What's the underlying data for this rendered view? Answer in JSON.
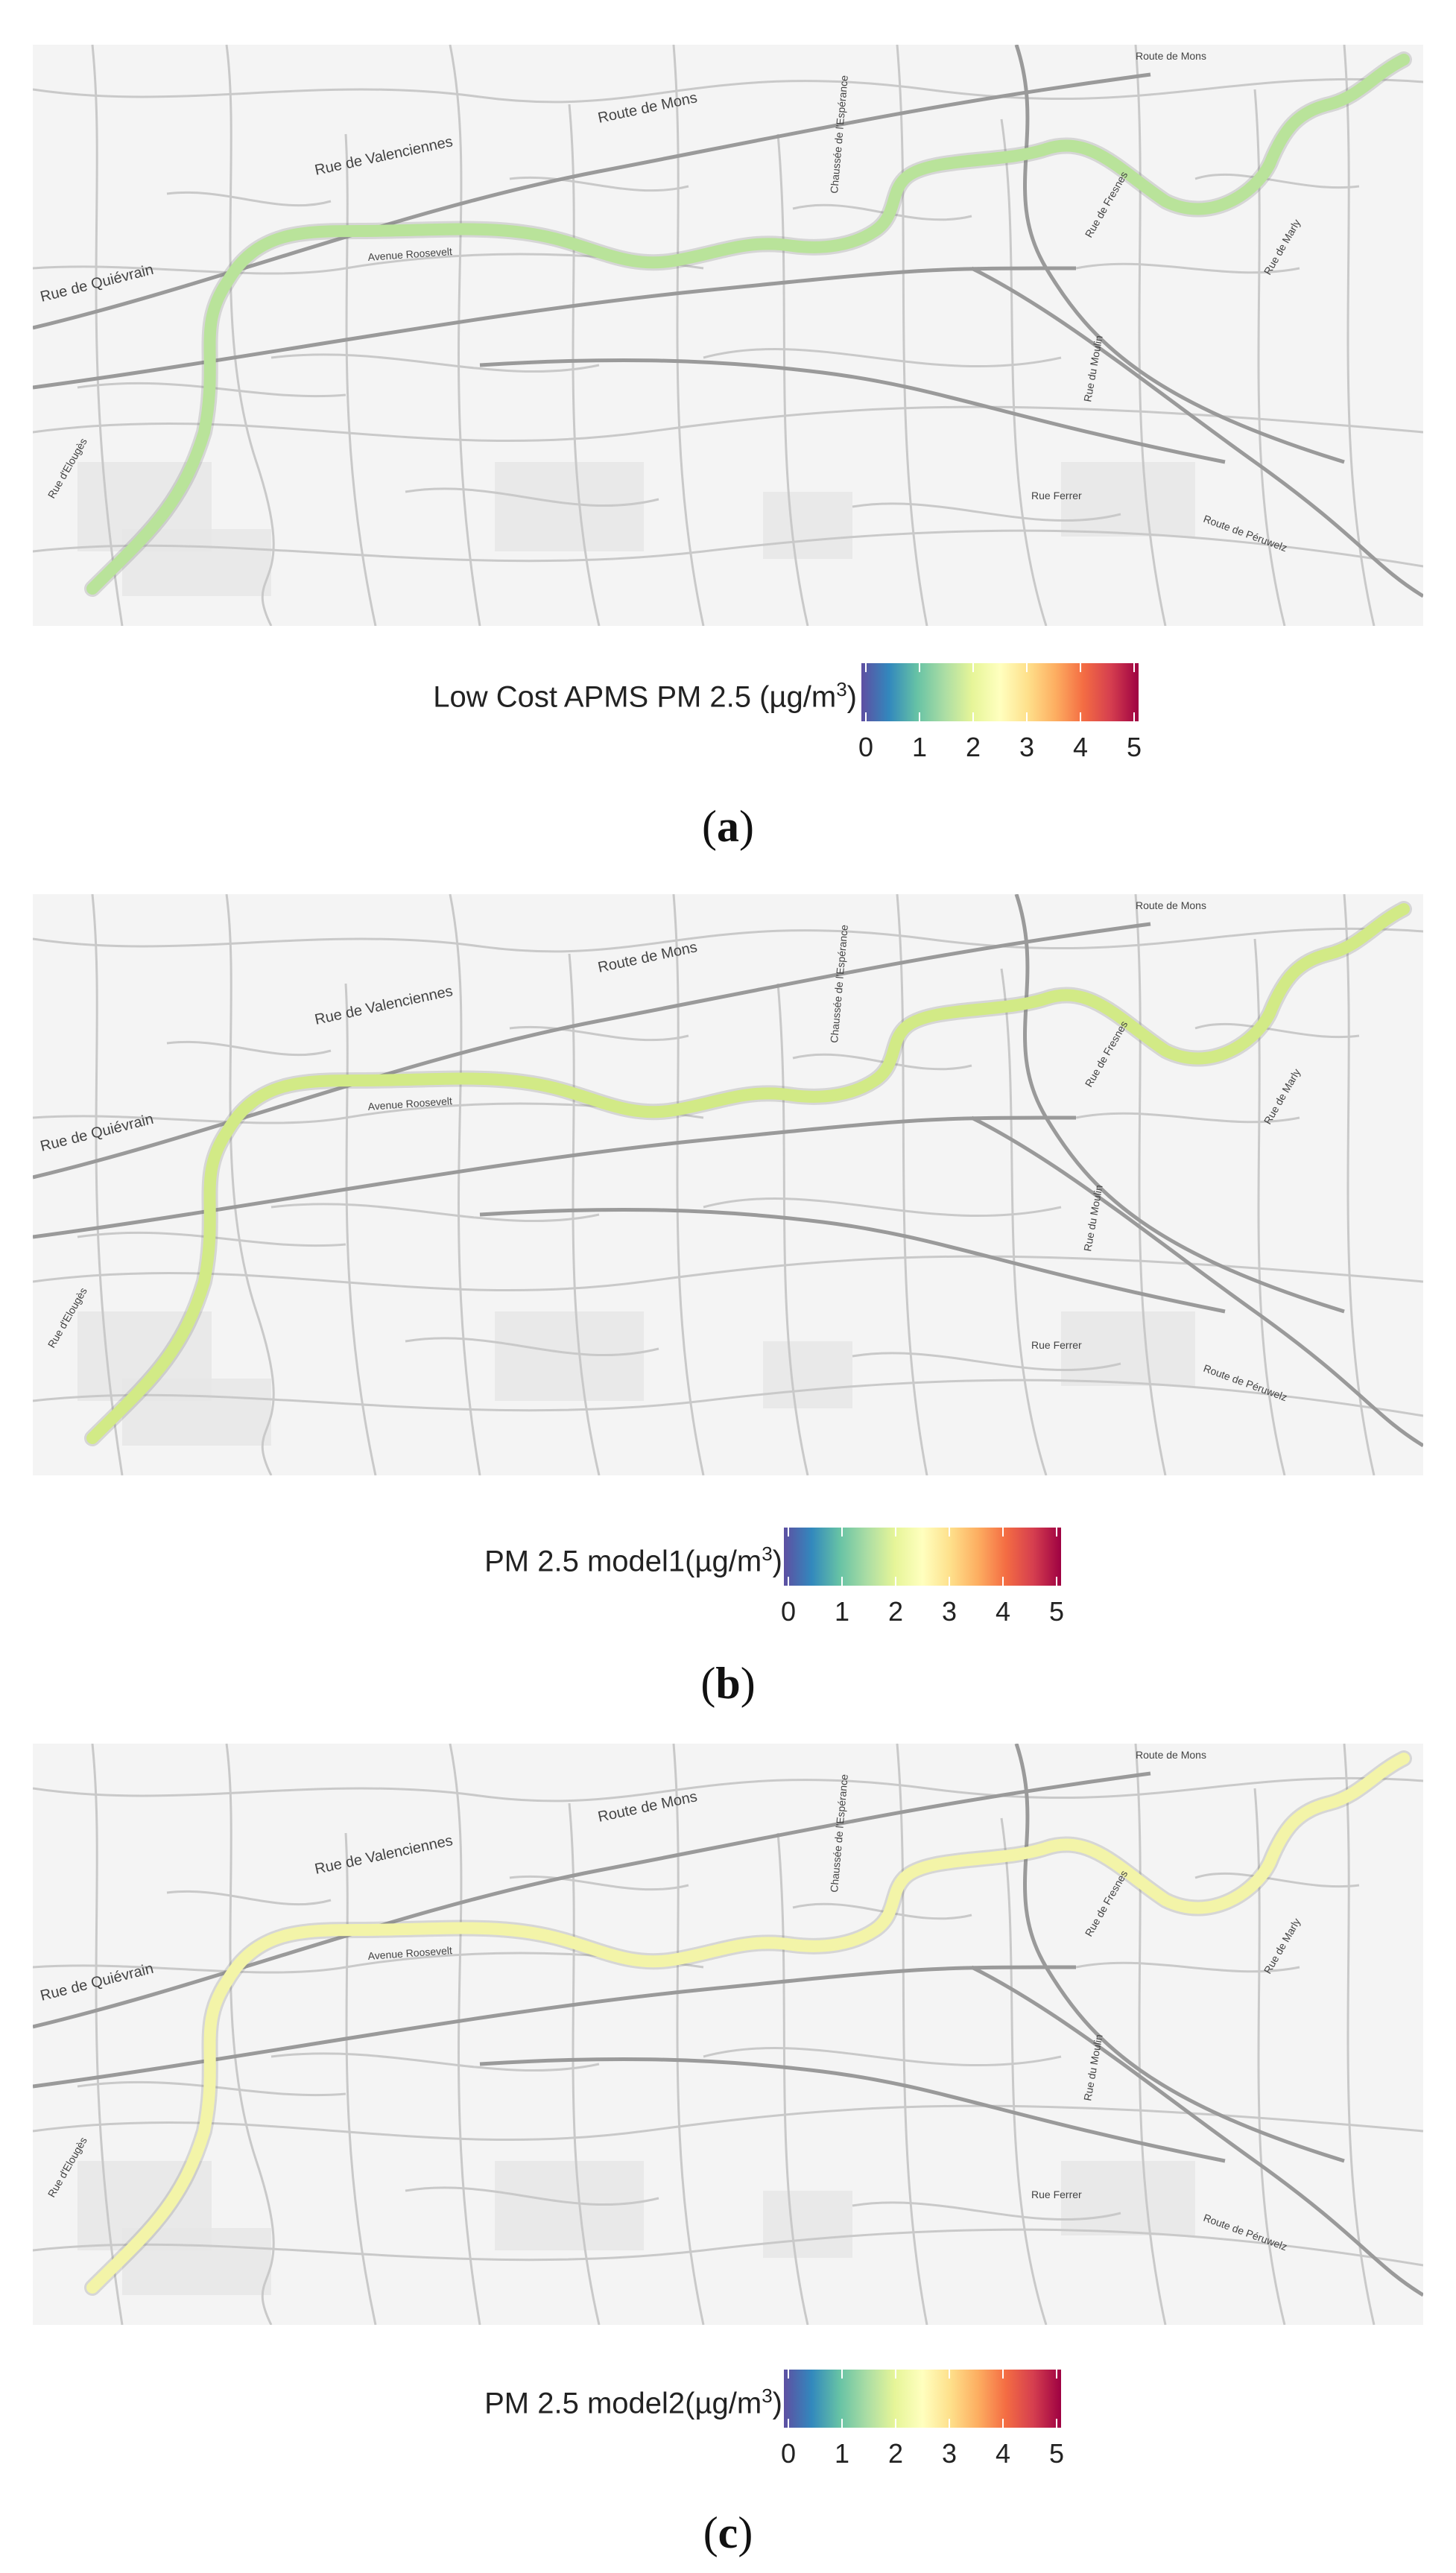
{
  "panels": [
    {
      "id": "a",
      "legend_title": "Low Cost APMS PM 2.5 (µg/m",
      "legend_sup": "3",
      "legend_close": ")",
      "caption_letter": "a",
      "route_color": "#b9e39a"
    },
    {
      "id": "b",
      "legend_title": "PM 2.5 model1(µg/m",
      "legend_sup": "3",
      "legend_close": ")",
      "caption_letter": "b",
      "route_color": "#d2ea86"
    },
    {
      "id": "c",
      "legend_title": "PM 2.5 model2(µg/m",
      "legend_sup": "3",
      "legend_close": ")",
      "caption_letter": "c",
      "route_color": "#f3f4a8"
    }
  ],
  "colorbar": {
    "min": 0,
    "max": 5,
    "ticks": [
      "0",
      "1",
      "2",
      "3",
      "4",
      "5"
    ],
    "palette": [
      "#5e4fa2",
      "#3288bd",
      "#66c2a5",
      "#abdda4",
      "#e6f598",
      "#ffffbf",
      "#fee08b",
      "#fdae61",
      "#f46d43",
      "#d53e4f",
      "#9e0142"
    ]
  },
  "street_labels": [
    "Route de Mons",
    "Rue de Valenciennes",
    "Rue de Quiévrain",
    "Rue d'Elougès",
    "Route de Mons",
    "Avenue Roosevelt",
    "Chaussée de l'Espérance",
    "Rue de Fresnes",
    "Rue de Marly",
    "Rue du Moulin",
    "Rue Ferrer",
    "Route de Péruwelz"
  ]
}
